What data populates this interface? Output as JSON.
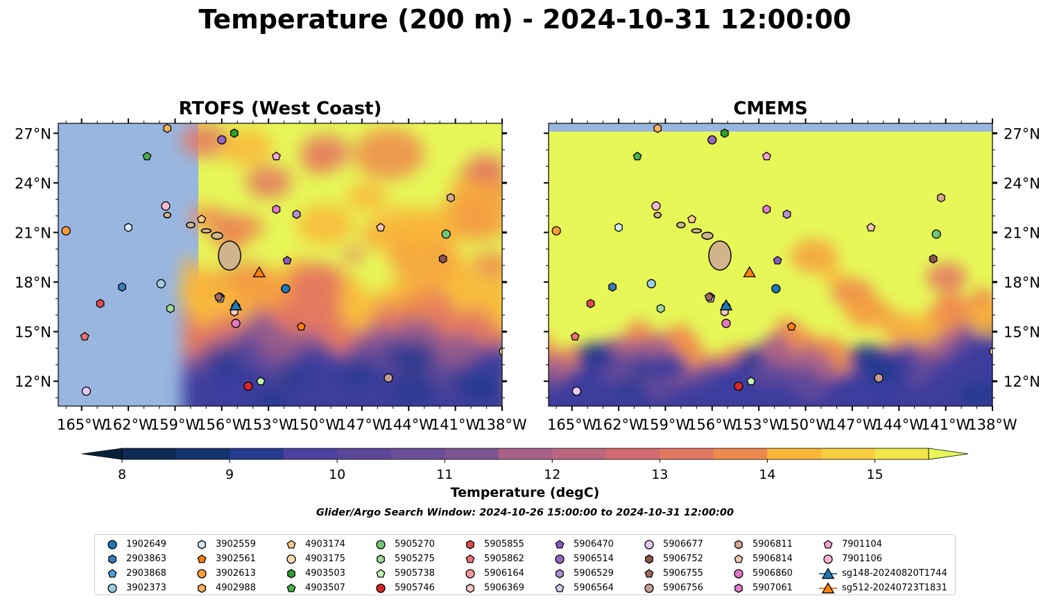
{
  "figure": {
    "title": "Temperature (200 m) - 2024-10-31 12:00:00",
    "search_window": "Glider/Argo Search Window: 2024-10-26 15:00:00 to 2024-10-31 12:00:00"
  },
  "panels": [
    {
      "title": "RTOFS (West Coast)"
    },
    {
      "title": "CMEMS"
    }
  ],
  "axes": {
    "lon_ticks": [
      "165°W",
      "162°W",
      "159°W",
      "156°W",
      "153°W",
      "150°W",
      "147°W",
      "144°W",
      "141°W",
      "138°W"
    ],
    "lat_ticks": [
      "27°N",
      "24°N",
      "21°N",
      "18°N",
      "15°N",
      "12°N"
    ]
  },
  "colorbar": {
    "label": "Temperature (degC)",
    "ticks": [
      "8",
      "9",
      "10",
      "11",
      "12",
      "13",
      "14",
      "15"
    ]
  },
  "colors": {
    "land_mask": "#98b6e0",
    "ocean_warm": "#e6f757",
    "cmap": [
      "#06203a",
      "#0c2a52",
      "#15336e",
      "#253a90",
      "#3a3d9e",
      "#4d419f",
      "#5c479a",
      "#6b4e95",
      "#7d5592",
      "#905b8d",
      "#a76188",
      "#bd6680",
      "#d26c72",
      "#e47760",
      "#ef8a4c",
      "#f6a03f",
      "#f9b73a",
      "#f9ce40",
      "#f2e54a"
    ],
    "land": "#d0b48c"
  },
  "chart_data": [
    {
      "type": "heatmap",
      "panel": "RTOFS (West Coast)",
      "variable": "Temperature (200 m)",
      "units": "degC",
      "xlim": [
        -166.5,
        -138
      ],
      "ylim": [
        10.5,
        27.6
      ],
      "color_range": [
        8,
        15.5
      ],
      "data_extent_lon": [
        -157.5,
        -138
      ]
    },
    {
      "type": "heatmap",
      "panel": "CMEMS",
      "variable": "Temperature (200 m)",
      "units": "degC",
      "xlim": [
        -166.5,
        -138
      ],
      "ylim": [
        10.5,
        27.6
      ],
      "color_range": [
        8,
        15.5
      ]
    },
    {
      "type": "scatter",
      "series": [
        {
          "name": "1902649",
          "marker": "circle",
          "color": "#1f77b4",
          "lon": -151.9,
          "lat": 17.6
        },
        {
          "name": "2903863",
          "marker": "hexagon",
          "color": "#3a7dbf",
          "lon": -162.4,
          "lat": 17.7
        },
        {
          "name": "2903868",
          "marker": "pentagon",
          "color": "#4fa3d8",
          "lon": -156.1,
          "lat": 17.1
        },
        {
          "name": "3902373",
          "marker": "circle",
          "color": "#9ecae1",
          "lon": -159.9,
          "lat": 17.9
        },
        {
          "name": "3902559",
          "marker": "hexagon",
          "color": "#d6ecfa",
          "lon": -162.0,
          "lat": 21.3
        },
        {
          "name": "3902561",
          "marker": "pentagon",
          "color": "#ff7f0e",
          "lon": -150.9,
          "lat": 15.3
        },
        {
          "name": "3902613",
          "marker": "circle",
          "color": "#fd9a3c",
          "lon": -166.0,
          "lat": 21.1
        },
        {
          "name": "4902988",
          "marker": "hexagon",
          "color": "#fdb15e",
          "lon": -159.5,
          "lat": 27.3
        },
        {
          "name": "4903174",
          "marker": "pentagon",
          "color": "#fdc98a",
          "lon": -157.3,
          "lat": 21.8
        },
        {
          "name": "4903175",
          "marker": "circle",
          "color": "#fdd9b4",
          "lon": -137.9,
          "lat": 13.8
        },
        {
          "name": "4903503",
          "marker": "hexagon",
          "color": "#2ca02c",
          "lon": -155.2,
          "lat": 27.0
        },
        {
          "name": "4903507",
          "marker": "pentagon",
          "color": "#4bb04b",
          "lon": -160.8,
          "lat": 25.6
        },
        {
          "name": "5905270",
          "marker": "circle",
          "color": "#74c476",
          "lon": -141.6,
          "lat": 20.9
        },
        {
          "name": "5905275",
          "marker": "hexagon",
          "color": "#a1d99b",
          "lon": -159.3,
          "lat": 16.4
        },
        {
          "name": "5905738",
          "marker": "pentagon",
          "color": "#c7f7b5",
          "lon": -153.5,
          "lat": 12.0
        },
        {
          "name": "5905746",
          "marker": "circle",
          "color": "#d62728",
          "lon": -154.3,
          "lat": 11.7
        },
        {
          "name": "5905855",
          "marker": "hexagon",
          "color": "#e04b4b",
          "lon": -163.8,
          "lat": 16.7
        },
        {
          "name": "5905862",
          "marker": "pentagon",
          "color": "#ee7272",
          "lon": -164.8,
          "lat": 14.7
        },
        {
          "name": "5906164",
          "marker": "circle",
          "color": "#f59a9a",
          "lon": -155.1,
          "lat": 16.5
        },
        {
          "name": "5906369",
          "marker": "hexagon",
          "color": "#fbc8c4",
          "lon": -155.2,
          "lat": 16.2
        },
        {
          "name": "5906470",
          "marker": "pentagon",
          "color": "#8a5cc2",
          "lon": -151.8,
          "lat": 19.3
        },
        {
          "name": "5906514",
          "marker": "circle",
          "color": "#9467bd",
          "lon": -156.0,
          "lat": 26.6
        },
        {
          "name": "5906529",
          "marker": "hexagon",
          "color": "#b08fd8",
          "lon": -151.2,
          "lat": 22.1
        },
        {
          "name": "5906564",
          "marker": "pentagon",
          "color": "#d6c6ef",
          "lon": -156.1,
          "lat": 17.0
        },
        {
          "name": "5906677",
          "marker": "circle",
          "color": "#e6c9f6",
          "lon": -164.7,
          "lat": 11.4
        },
        {
          "name": "5906752",
          "marker": "hexagon",
          "color": "#8c564b",
          "lon": -141.8,
          "lat": 19.4
        },
        {
          "name": "5906755",
          "marker": "pentagon",
          "color": "#a0695c",
          "lon": -156.2,
          "lat": 17.1
        },
        {
          "name": "5906756",
          "marker": "circle",
          "color": "#c49c94",
          "lon": -145.3,
          "lat": 12.2
        },
        {
          "name": "5906811",
          "marker": "hexagon",
          "color": "#d8a791",
          "lon": -141.3,
          "lat": 23.1
        },
        {
          "name": "5906814",
          "marker": "pentagon",
          "color": "#f7c8b4",
          "lon": -145.8,
          "lat": 21.3
        },
        {
          "name": "5906860",
          "marker": "circle",
          "color": "#e377c2",
          "lon": -155.1,
          "lat": 15.5
        },
        {
          "name": "5907061",
          "marker": "hexagon",
          "color": "#e17ccf",
          "lon": -152.5,
          "lat": 22.4
        },
        {
          "name": "7901104",
          "marker": "pentagon",
          "color": "#f4a6d8",
          "lon": -152.5,
          "lat": 25.6
        },
        {
          "name": "7901106",
          "marker": "circle",
          "color": "#f7b6d2",
          "lon": -159.6,
          "lat": 22.6
        },
        {
          "name": "sg148-20240820T1744",
          "marker": "triangle",
          "color": "#1f77b4",
          "lon": -155.1,
          "lat": 16.6
        },
        {
          "name": "sg512-20240723T1831",
          "marker": "triangle",
          "color": "#ff7f0e",
          "lon": -153.6,
          "lat": 18.6
        }
      ]
    }
  ]
}
